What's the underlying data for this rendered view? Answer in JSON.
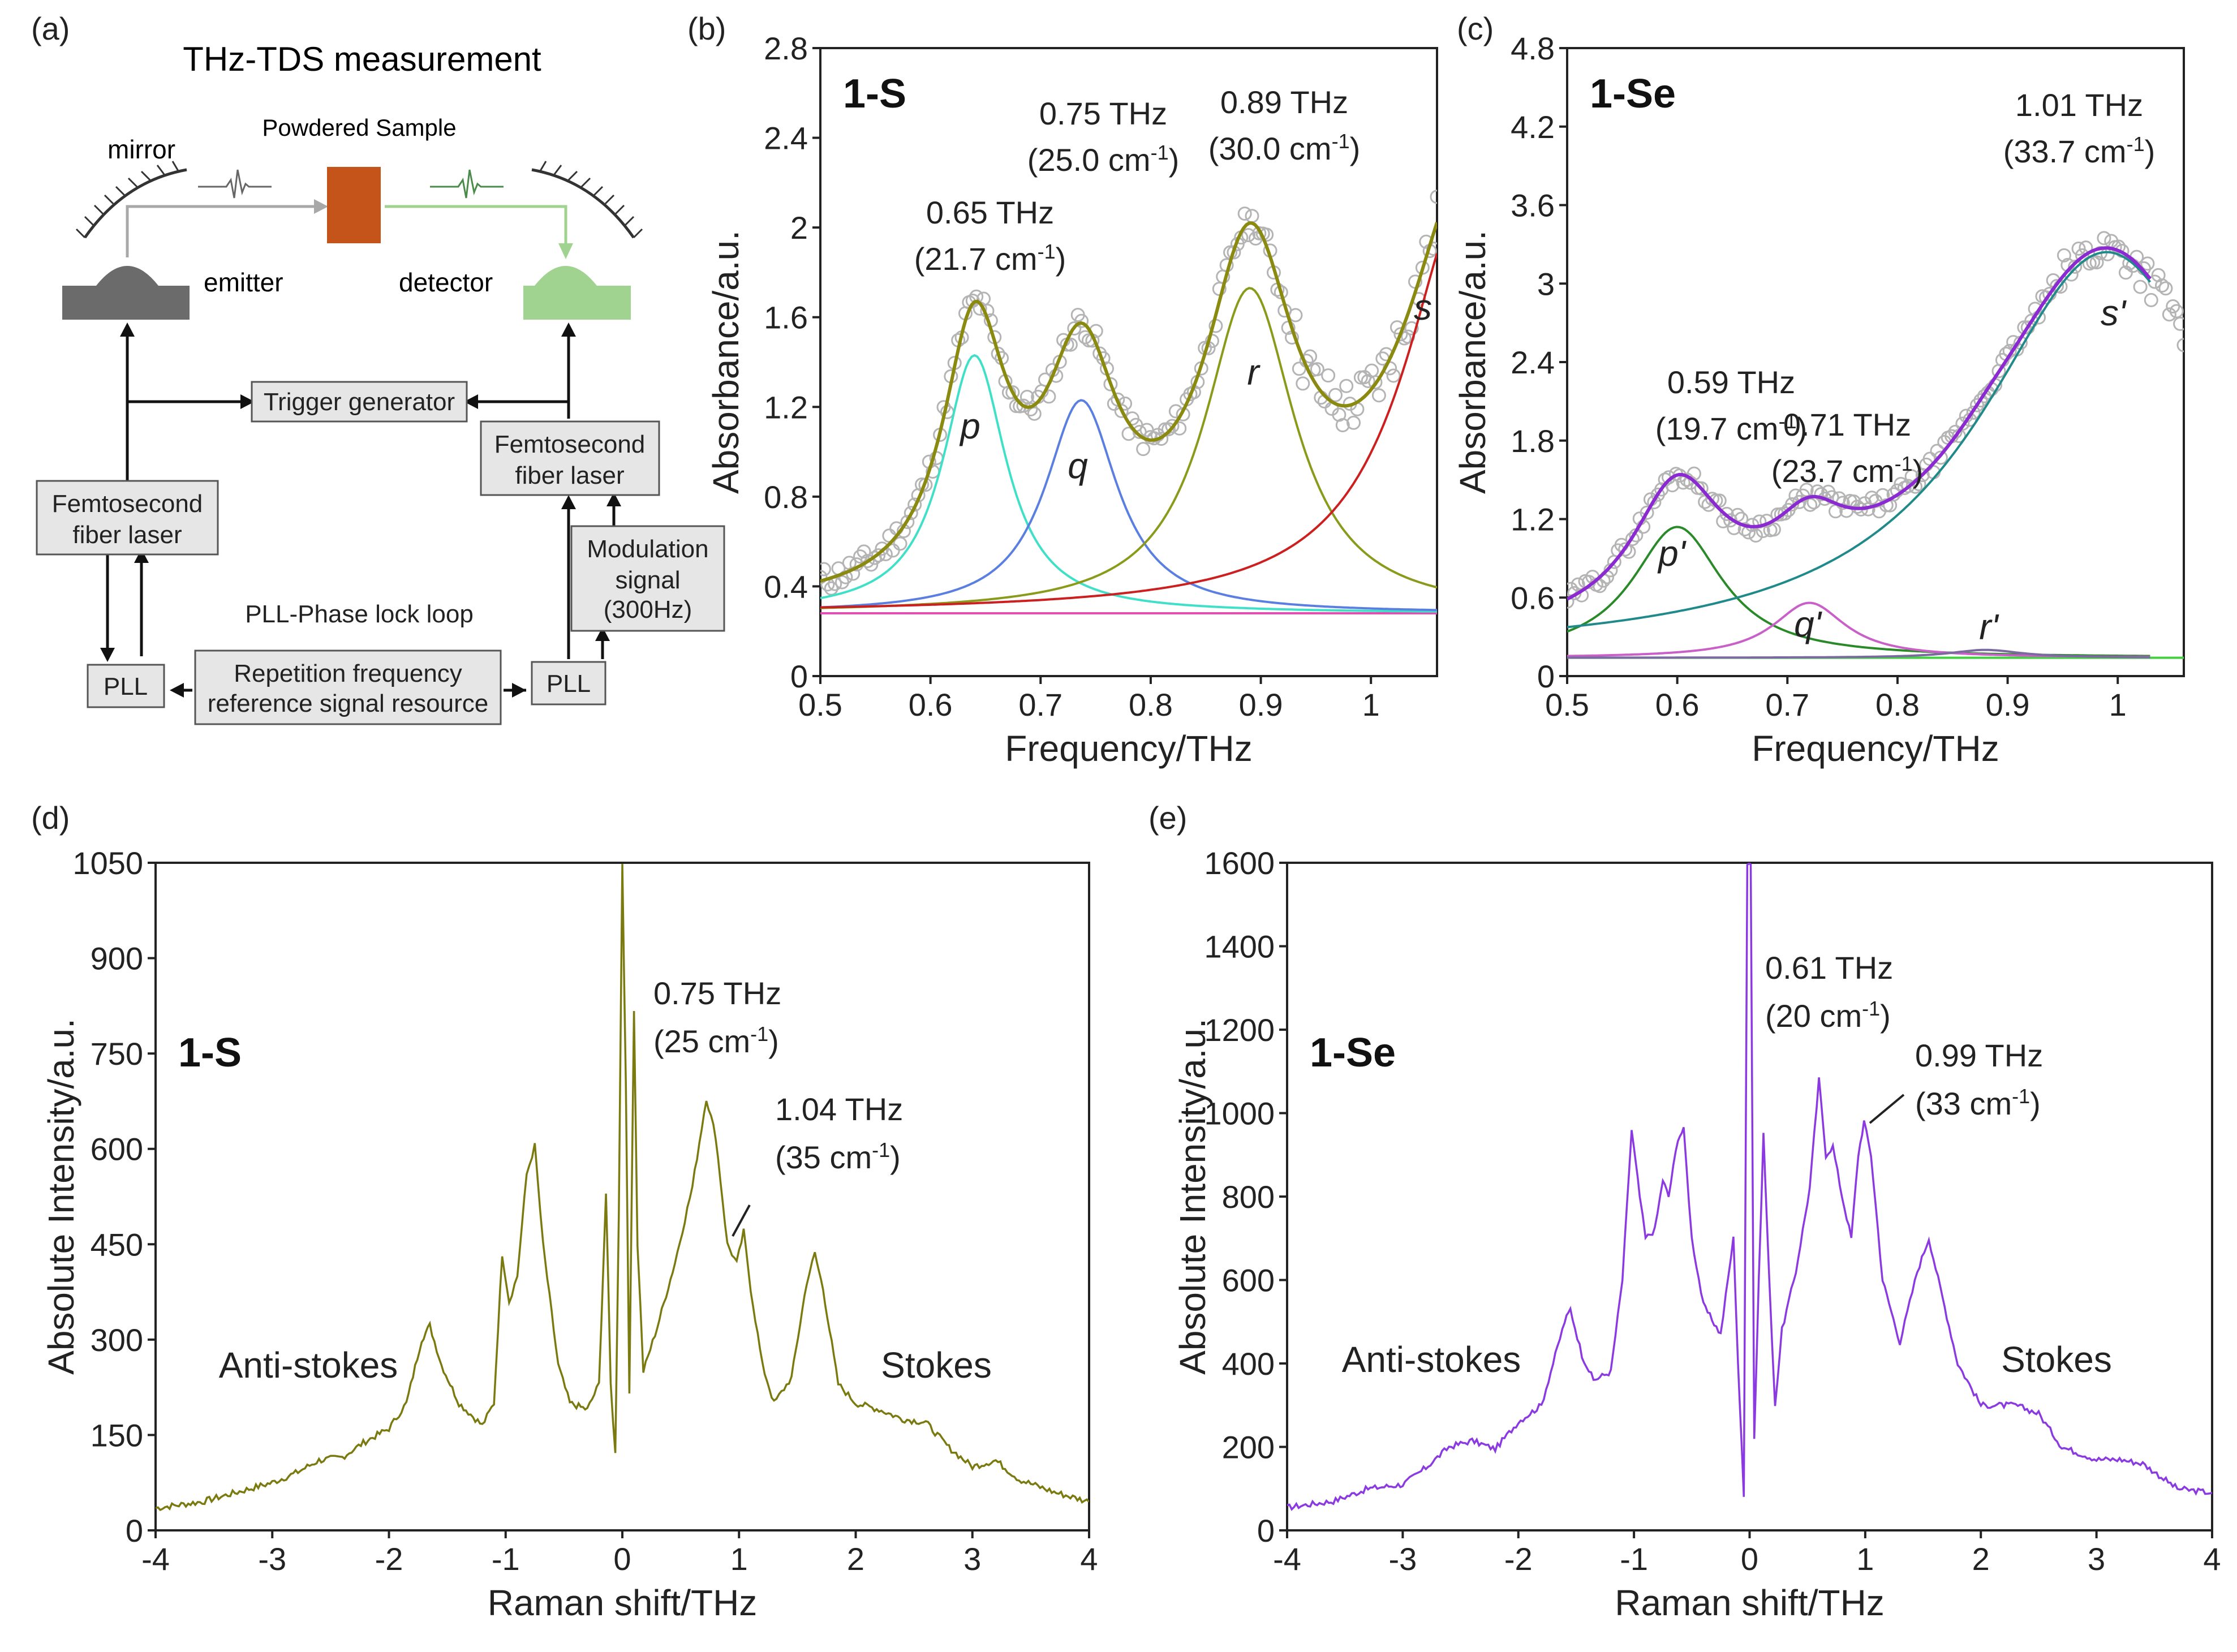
{
  "figure": {
    "panel_labels": [
      "(a)",
      "(b)",
      "(c)",
      "(d)",
      "(e)"
    ]
  },
  "diagram": {
    "title": "THz-TDS measurement",
    "powdered_sample": "Powdered Sample",
    "mirror": "mirror",
    "emitter": "emitter",
    "detector": "detector",
    "trigger_generator": "Trigger generator",
    "fs_laser_left_1": "Femtosecond",
    "fs_laser_left_2": "fiber laser",
    "fs_laser_right_1": "Femtosecond",
    "fs_laser_right_2": "fiber laser",
    "modulation_1": "Modulation",
    "modulation_2": "signal",
    "modulation_3": "(300Hz)",
    "pll_caption": "PLL-Phase lock loop",
    "pll_left": "PLL",
    "pll_right": "PLL",
    "rep_1": "Repetition frequency",
    "rep_2": "reference signal resource",
    "colors": {
      "emitter": "#6b6b6b",
      "detector": "#9fd38f",
      "sample": "#c5541b",
      "box": "#e6e6e6"
    }
  },
  "chart_data": [
    {
      "id": "b",
      "type": "line",
      "title": "1-S",
      "xlabel": "Frequency/THz",
      "ylabel": "Absorbance/a.u.",
      "xlim": [
        0.5,
        1.06
      ],
      "ylim": [
        0,
        2.8
      ],
      "xticks": [
        0.5,
        0.6,
        0.7,
        0.8,
        0.9,
        1.0
      ],
      "xtick_labels": [
        "0.5",
        "0.6",
        "0.7",
        "0.8",
        "0.9",
        "1"
      ],
      "yticks": [
        0,
        0.4,
        0.8,
        1.2,
        1.6,
        2.0,
        2.4,
        2.8
      ],
      "ytick_labels": [
        "0",
        "0.4",
        "0.8",
        "1.2",
        "1.6",
        "2",
        "2.4",
        "2.8"
      ],
      "baseline": 0.28,
      "peaks": [
        {
          "name": "p",
          "center": 0.64,
          "amp": 1.15,
          "width": 0.035,
          "color": "#40e0c8"
        },
        {
          "name": "q",
          "center": 0.737,
          "amp": 0.95,
          "width": 0.04,
          "color": "#5b7fe0"
        },
        {
          "name": "r",
          "center": 0.89,
          "amp": 1.45,
          "width": 0.05,
          "color": "#8a9a1a"
        },
        {
          "name": "s",
          "center": 1.09,
          "amp": 1.9,
          "width": 0.07,
          "color": "#cc2020"
        }
      ],
      "baseline_color": "#e050b0",
      "sum_color": "#8a8a10",
      "scatter_color": "#b4b4b4",
      "annotations": {
        "a1_freq": "0.65 THz",
        "a1_wn": "(21.7 cm",
        "a2_freq": "0.75 THz",
        "a2_wn": "(25.0 cm",
        "a3_freq": "0.89 THz",
        "a3_wn": "(30.0 cm",
        "sup": "-1",
        "close": ")"
      },
      "peak_labels": [
        "p",
        "q",
        "r",
        "s"
      ]
    },
    {
      "id": "c",
      "type": "line",
      "title": "1-Se",
      "xlabel": "Frequency/THz",
      "ylabel": "Absorbance/a.u.",
      "xlim": [
        0.5,
        1.06
      ],
      "ylim": [
        0,
        4.8
      ],
      "xticks": [
        0.5,
        0.6,
        0.7,
        0.8,
        0.9,
        1.0
      ],
      "xtick_labels": [
        "0.5",
        "0.6",
        "0.7",
        "0.8",
        "0.9",
        "1"
      ],
      "yticks": [
        0,
        0.6,
        1.2,
        1.8,
        2.4,
        3.0,
        3.6,
        4.2,
        4.8
      ],
      "ytick_labels": [
        "0",
        "0.6",
        "1.2",
        "1.8",
        "2.4",
        "3",
        "3.6",
        "4.2",
        "4.8"
      ],
      "baseline": 0.14,
      "peaks": [
        {
          "name": "p'",
          "center": 0.6,
          "amp": 1.0,
          "width": 0.05,
          "color": "#2a8a2a"
        },
        {
          "name": "q'",
          "center": 0.72,
          "amp": 0.42,
          "width": 0.04,
          "color": "#c860c8"
        },
        {
          "name": "r'",
          "center": 0.88,
          "amp": 0.06,
          "width": 0.04,
          "color": "#7a6aa0"
        },
        {
          "name": "s'",
          "center": 0.99,
          "amp": 3.1,
          "width": 0.14,
          "color": "#208a8a"
        }
      ],
      "baseline_color": "#40d040",
      "sum_color": "#8a2ad0",
      "scatter_color": "#b4b4b4",
      "annotations": {
        "a1_freq": "0.59 THz",
        "a1_wn": "(19.7 cm",
        "a2_freq": "0.71 THz",
        "a2_wn": "(23.7 cm",
        "a3_freq": "1.01 THz",
        "a3_wn": "(33.7 cm",
        "sup": "-1",
        "close": ")"
      },
      "peak_labels": [
        "p'",
        "q'",
        "r'",
        "s'"
      ]
    },
    {
      "id": "d",
      "type": "line",
      "title": "1-S",
      "xlabel": "Raman shift/THz",
      "ylabel": "Absolute Intensity/a.u.",
      "xlim": [
        -4,
        4
      ],
      "ylim": [
        0,
        1050
      ],
      "xticks": [
        -4,
        -3,
        -2,
        -1,
        0,
        1,
        2,
        3,
        4
      ],
      "yticks": [
        0,
        150,
        300,
        450,
        600,
        750,
        900,
        1050
      ],
      "color": "#7a7a10",
      "points": [
        [
          -4,
          35
        ],
        [
          -3.6,
          45
        ],
        [
          -3.3,
          60
        ],
        [
          -3.0,
          75
        ],
        [
          -2.8,
          90
        ],
        [
          -2.6,
          110
        ],
        [
          -2.4,
          115
        ],
        [
          -2.2,
          140
        ],
        [
          -2.0,
          160
        ],
        [
          -1.85,
          200
        ],
        [
          -1.72,
          300
        ],
        [
          -1.65,
          322
        ],
        [
          -1.55,
          260
        ],
        [
          -1.4,
          200
        ],
        [
          -1.2,
          165
        ],
        [
          -1.1,
          200
        ],
        [
          -1.03,
          435
        ],
        [
          -0.97,
          360
        ],
        [
          -0.9,
          400
        ],
        [
          -0.82,
          560
        ],
        [
          -0.75,
          605
        ],
        [
          -0.68,
          450
        ],
        [
          -0.55,
          260
        ],
        [
          -0.45,
          200
        ],
        [
          -0.3,
          190
        ],
        [
          -0.2,
          230
        ],
        [
          -0.14,
          530
        ],
        [
          -0.1,
          230
        ],
        [
          -0.06,
          120
        ],
        [
          -0.03,
          500
        ],
        [
          0.0,
          1050
        ],
        [
          0.03,
          700
        ],
        [
          0.06,
          220
        ],
        [
          0.1,
          820
        ],
        [
          0.13,
          450
        ],
        [
          0.18,
          250
        ],
        [
          0.3,
          320
        ],
        [
          0.45,
          420
        ],
        [
          0.6,
          540
        ],
        [
          0.72,
          680
        ],
        [
          0.8,
          620
        ],
        [
          0.9,
          450
        ],
        [
          0.98,
          420
        ],
        [
          1.04,
          470
        ],
        [
          1.1,
          380
        ],
        [
          1.2,
          260
        ],
        [
          1.3,
          200
        ],
        [
          1.45,
          240
        ],
        [
          1.58,
          390
        ],
        [
          1.65,
          435
        ],
        [
          1.72,
          380
        ],
        [
          1.85,
          230
        ],
        [
          2.0,
          200
        ],
        [
          2.2,
          190
        ],
        [
          2.4,
          175
        ],
        [
          2.6,
          170
        ],
        [
          2.8,
          130
        ],
        [
          3.0,
          100
        ],
        [
          3.2,
          110
        ],
        [
          3.4,
          80
        ],
        [
          3.7,
          60
        ],
        [
          4.0,
          45
        ]
      ],
      "annotations": {
        "a1_freq": "0.75 THz",
        "a1_wn": "(25 cm",
        "a2_freq": "1.04 THz",
        "a2_wn": "(35 cm",
        "sup": "-1",
        "close": ")",
        "anti": "Anti-stokes",
        "stokes": "Stokes"
      }
    },
    {
      "id": "e",
      "type": "line",
      "title": "1-Se",
      "xlabel": "Raman shift/THz",
      "ylabel": "Absolute Intensity/a.u.",
      "xlim": [
        -4,
        4
      ],
      "ylim": [
        0,
        1600
      ],
      "xticks": [
        -4,
        -3,
        -2,
        -1,
        0,
        1,
        2,
        3,
        4
      ],
      "yticks": [
        0,
        200,
        400,
        600,
        800,
        1000,
        1200,
        1400,
        1600
      ],
      "color": "#8a3ae0",
      "points": [
        [
          -4,
          55
        ],
        [
          -3.6,
          70
        ],
        [
          -3.3,
          100
        ],
        [
          -3.0,
          110
        ],
        [
          -2.8,
          150
        ],
        [
          -2.6,
          200
        ],
        [
          -2.4,
          215
        ],
        [
          -2.2,
          195
        ],
        [
          -2.0,
          260
        ],
        [
          -1.8,
          300
        ],
        [
          -1.6,
          500
        ],
        [
          -1.55,
          530
        ],
        [
          -1.45,
          420
        ],
        [
          -1.35,
          360
        ],
        [
          -1.2,
          380
        ],
        [
          -1.1,
          600
        ],
        [
          -1.02,
          960
        ],
        [
          -0.95,
          800
        ],
        [
          -0.9,
          700
        ],
        [
          -0.82,
          720
        ],
        [
          -0.75,
          840
        ],
        [
          -0.7,
          800
        ],
        [
          -0.62,
          940
        ],
        [
          -0.57,
          960
        ],
        [
          -0.5,
          700
        ],
        [
          -0.4,
          540
        ],
        [
          -0.25,
          470
        ],
        [
          -0.14,
          700
        ],
        [
          -0.1,
          400
        ],
        [
          -0.05,
          80
        ],
        [
          -0.02,
          1600
        ],
        [
          0.01,
          1600
        ],
        [
          0.04,
          220
        ],
        [
          0.08,
          600
        ],
        [
          0.12,
          950
        ],
        [
          0.17,
          600
        ],
        [
          0.22,
          300
        ],
        [
          0.28,
          480
        ],
        [
          0.4,
          620
        ],
        [
          0.52,
          820
        ],
        [
          0.6,
          1080
        ],
        [
          0.66,
          900
        ],
        [
          0.72,
          920
        ],
        [
          0.8,
          800
        ],
        [
          0.88,
          700
        ],
        [
          0.94,
          900
        ],
        [
          0.99,
          980
        ],
        [
          1.05,
          900
        ],
        [
          1.15,
          600
        ],
        [
          1.3,
          450
        ],
        [
          1.45,
          620
        ],
        [
          1.55,
          700
        ],
        [
          1.65,
          580
        ],
        [
          1.8,
          400
        ],
        [
          2.0,
          300
        ],
        [
          2.3,
          300
        ],
        [
          2.5,
          280
        ],
        [
          2.7,
          200
        ],
        [
          3.0,
          170
        ],
        [
          3.2,
          170
        ],
        [
          3.4,
          160
        ],
        [
          3.7,
          100
        ],
        [
          4.0,
          90
        ]
      ],
      "annotations": {
        "a1_freq": "0.61 THz",
        "a1_wn": "(20 cm",
        "a2_freq": "0.99 THz",
        "a2_wn": "(33 cm",
        "sup": "-1",
        "close": ")",
        "anti": "Anti-stokes",
        "stokes": "Stokes"
      }
    }
  ]
}
